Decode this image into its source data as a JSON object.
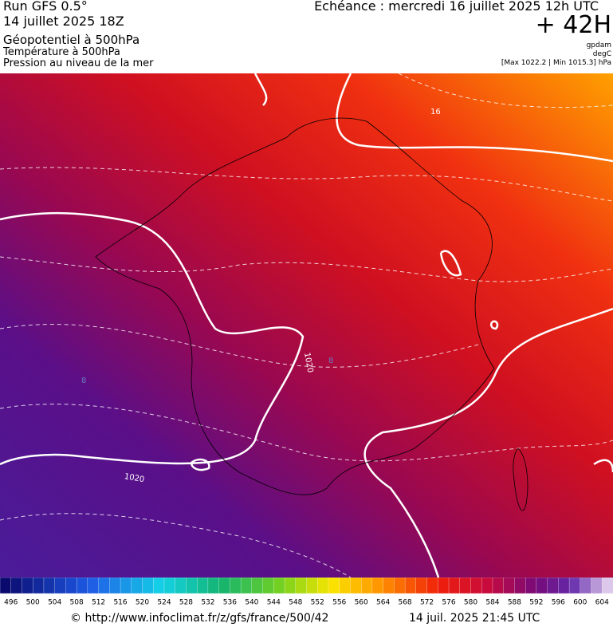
{
  "header": {
    "run": "Run GFS 0.5°",
    "date": "14 juillet 2025 18Z",
    "field1": "Géopotentiel à 500hPa",
    "field2": "Température à 500hPa",
    "field3": "Pression au niveau de la mer",
    "valid": "Echéance : mercredi 16 juillet 2025 12h UTC",
    "lead": "+ 42H",
    "unit1": "gpdam",
    "unit2": "degC",
    "pressure_range": "[Max 1022.2 | Min 1015.3] hPa"
  },
  "contour_labels": [
    "16",
    "1020",
    "8",
    "8",
    "1020"
  ],
  "scale": {
    "labels": [
      496,
      500,
      504,
      508,
      512,
      516,
      520,
      524,
      528,
      532,
      536,
      540,
      544,
      548,
      552,
      556,
      560,
      564,
      568,
      572,
      576,
      580,
      584,
      588,
      592,
      596,
      600,
      604
    ]
  },
  "footer": {
    "url": "© http://www.infoclimat.fr/z/gfs/france/500/42",
    "timestamp": "14 juil. 2025 21:45 UTC"
  }
}
